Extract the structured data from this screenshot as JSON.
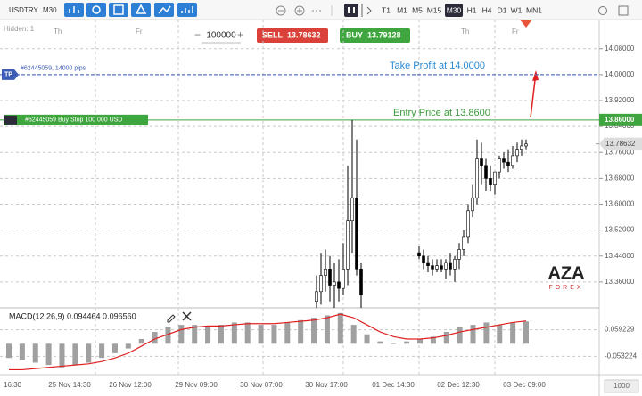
{
  "toolbar": {
    "symbol": "USDTRY",
    "timeframe": "M30",
    "timeframes": [
      "T1",
      "M1",
      "M5",
      "M15",
      "M30",
      "H1",
      "H4",
      "D1",
      "W1",
      "MN1"
    ],
    "active_timeframe": "M30"
  },
  "order_panel": {
    "quantity": "100000",
    "sell": "SELL",
    "sell_price": "13.78632",
    "buy": "BUY",
    "buy_price": "13.79128"
  },
  "chart_data": [
    {
      "type": "candlestick",
      "hidden_label": "Hidden: 1",
      "day_labels": [
        "Th",
        "Fr",
        "Th",
        "Fr"
      ],
      "ylim": [
        13.28,
        14.17
      ],
      "yticks": [
        {
          "value": 14.08,
          "label": "14.08000"
        },
        {
          "value": 14.0,
          "label": "14.00000"
        },
        {
          "value": 13.92,
          "label": "13.92000"
        },
        {
          "value": 13.84,
          "label": "13.84000"
        },
        {
          "value": 13.76,
          "label": "13.76000"
        },
        {
          "value": 13.68,
          "label": "13.68000"
        },
        {
          "value": 13.6,
          "label": "13.60000"
        },
        {
          "value": 13.52,
          "label": "13.52000"
        },
        {
          "value": 13.44,
          "label": "13.44000"
        },
        {
          "value": 13.36,
          "label": "13.36000"
        }
      ],
      "x_labels": [
        "16:30",
        "25 Nov 14:30",
        "26 Nov 12:00",
        "29 Nov 09:00",
        "30 Nov 07:00",
        "30 Nov 17:00",
        "01 Dec 14:30",
        "02 Dec 12:30",
        "03 Dec 09:00"
      ],
      "open": [
        13.3,
        13.33,
        13.38,
        13.4,
        13.35,
        13.36,
        13.34,
        13.4,
        13.55,
        13.62,
        13.4,
        null,
        null,
        null,
        null,
        null,
        null,
        null,
        null,
        null,
        null,
        null,
        null,
        13.45,
        13.44,
        13.42,
        13.41,
        13.4,
        13.41,
        13.4,
        13.42,
        13.4,
        13.43,
        13.46,
        13.5,
        13.58,
        13.62,
        13.74,
        13.72,
        13.68,
        13.66,
        13.7,
        13.74,
        13.73,
        13.72,
        13.75,
        13.77,
        13.78
      ],
      "high": [
        13.38,
        13.45,
        13.46,
        13.44,
        13.42,
        13.43,
        13.48,
        13.72,
        13.86,
        13.8,
        13.42,
        null,
        null,
        null,
        null,
        null,
        null,
        null,
        null,
        null,
        null,
        null,
        null,
        13.47,
        13.46,
        13.44,
        13.43,
        13.43,
        13.43,
        13.43,
        13.45,
        13.44,
        13.48,
        13.52,
        13.6,
        13.66,
        13.8,
        13.79,
        13.74,
        13.72,
        13.7,
        13.75,
        13.76,
        13.77,
        13.78,
        13.79,
        13.8,
        13.8
      ],
      "low": [
        13.28,
        13.29,
        13.33,
        13.3,
        13.28,
        13.3,
        13.32,
        13.35,
        13.45,
        13.38,
        13.28,
        null,
        null,
        null,
        null,
        null,
        null,
        null,
        null,
        null,
        null,
        null,
        null,
        13.43,
        13.4,
        13.39,
        13.38,
        13.39,
        13.39,
        13.37,
        13.38,
        13.36,
        13.4,
        13.44,
        13.48,
        13.56,
        13.6,
        13.66,
        13.64,
        13.64,
        13.63,
        13.68,
        13.71,
        13.7,
        13.71,
        13.73,
        13.75,
        13.77
      ],
      "close": [
        13.33,
        13.38,
        13.4,
        13.35,
        13.36,
        13.34,
        13.4,
        13.55,
        13.62,
        13.4,
        13.32,
        null,
        null,
        null,
        null,
        null,
        null,
        null,
        null,
        null,
        null,
        null,
        null,
        13.44,
        13.42,
        13.41,
        13.4,
        13.41,
        13.4,
        13.42,
        13.4,
        13.43,
        13.46,
        13.5,
        13.58,
        13.62,
        13.74,
        13.72,
        13.68,
        13.66,
        13.7,
        13.74,
        13.73,
        13.72,
        13.75,
        13.77,
        13.78,
        13.786
      ],
      "up_color": "#ffffff",
      "down_color": "#000000",
      "take_profit": {
        "tag": "TP",
        "label": "#62445059, 14000 pips",
        "value": 14.0,
        "text": "Take Profit at 14.0000",
        "color": "#3b5bb5"
      },
      "entry": {
        "label": "#62445059 Buy Stop 100 000 USD",
        "value": 13.86,
        "text": "Entry Price at 13.8600",
        "price_label": "13.86000",
        "color": "#3fa53f"
      },
      "current_price": {
        "value": 13.78632,
        "label": "13.78632"
      }
    },
    {
      "type": "macd",
      "title": "MACD(12,26,9) 0.094464 0.096560",
      "ylim": [
        -0.131,
        0.152
      ],
      "yticks": [
        0.059229,
        -0.053224
      ],
      "histogram": [
        -0.06,
        -0.07,
        -0.08,
        -0.09,
        -0.1,
        -0.09,
        -0.08,
        -0.06,
        -0.04,
        -0.02,
        0.02,
        0.05,
        0.07,
        0.08,
        0.08,
        0.07,
        0.08,
        0.09,
        0.09,
        0.08,
        0.08,
        0.09,
        0.1,
        0.11,
        0.12,
        0.13,
        0.08,
        0.04,
        0.01,
        0.0,
        0.01,
        0.02,
        0.03,
        0.05,
        0.07,
        0.08,
        0.09,
        0.08,
        0.09,
        0.094464
      ],
      "signal": [
        -0.11,
        -0.11,
        -0.105,
        -0.1,
        -0.095,
        -0.09,
        -0.085,
        -0.075,
        -0.06,
        -0.04,
        -0.01,
        0.02,
        0.04,
        0.06,
        0.07,
        0.075,
        0.075,
        0.08,
        0.085,
        0.085,
        0.085,
        0.09,
        0.095,
        0.1,
        0.11,
        0.125,
        0.11,
        0.08,
        0.05,
        0.03,
        0.02,
        0.02,
        0.025,
        0.035,
        0.05,
        0.06,
        0.07,
        0.08,
        0.09,
        0.09656
      ],
      "histogram_color": "#a0a0a0",
      "signal_color": "#e02020"
    }
  ],
  "logo": {
    "brand": "AZA",
    "subtitle": "FOREX"
  },
  "footer": {
    "zoom": "1000"
  }
}
